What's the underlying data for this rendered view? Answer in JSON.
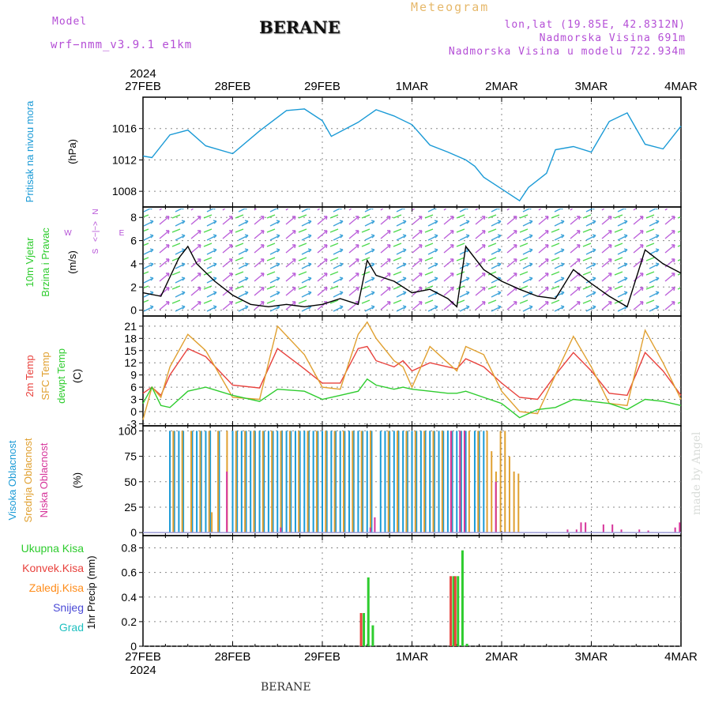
{
  "header": {
    "model_label": "Model",
    "model_name": "wrf−nmm_v3.9.1  e1km",
    "title": "BERANE",
    "meteogram_label": "Meteogram",
    "coords": "lon,lat (19.85E, 42.8312N)",
    "altitude": "Nadmorska Visina 691m",
    "model_altitude": "Nadmorska Visina u modelu 722.934m"
  },
  "footer": {
    "title": "BERANE",
    "made_by": "made by Angel"
  },
  "time_axis": {
    "year": "2024",
    "dates": [
      "27FEB",
      "28FEB",
      "29FEB",
      "1MAR",
      "2MAR",
      "3MAR",
      "4MAR"
    ]
  },
  "wind_legend": {
    "west": "W",
    "east": "E",
    "north_arrow": "<−|−>",
    "north": "N",
    "south": "S"
  },
  "colors": {
    "pressure": "#1a9ad6",
    "t2m": "#e8413c",
    "tsfc": "#e0a030",
    "dewpt": "#2ecc2e",
    "cloud_high": "#1a9ad6",
    "cloud_mid": "#e0a030",
    "cloud_low": "#d6349a",
    "precip_total": "#2ecc2e",
    "precip_conv": "#e8413c",
    "precip_frozen": "#ff8c1a",
    "precip_snow": "#4a4ad6",
    "precip_hail": "#20c0c0"
  },
  "chart_data": [
    {
      "type": "line",
      "ylabel": "Pritisak na nivou mora",
      "unit": "(hPa)",
      "yticks": [
        1008,
        1012,
        1016
      ],
      "ylim": [
        1006,
        1020
      ],
      "x": [
        0,
        0.1,
        0.3,
        0.5,
        0.7,
        1.0,
        1.3,
        1.6,
        1.8,
        2.0,
        2.1,
        2.4,
        2.6,
        2.8,
        3.0,
        3.2,
        3.4,
        3.6,
        3.7,
        3.8,
        4.0,
        4.2,
        4.3,
        4.5,
        4.6,
        4.8,
        5.0,
        5.2,
        5.4,
        5.6,
        5.8,
        6.0
      ],
      "values": [
        1012.5,
        1012.3,
        1015.2,
        1015.8,
        1013.8,
        1012.8,
        1015.7,
        1018.3,
        1018.5,
        1017.0,
        1015.0,
        1016.8,
        1018.4,
        1017.6,
        1016.5,
        1013.9,
        1013.0,
        1012.0,
        1011.2,
        1009.8,
        1008.3,
        1006.8,
        1008.5,
        1010.3,
        1013.3,
        1013.7,
        1013.0,
        1016.9,
        1018.0,
        1014.0,
        1013.4,
        1016.3
      ],
      "grid": true
    },
    {
      "type": "line",
      "title": "10m Vjetar",
      "subtitle": "Brzina i Pravac",
      "ylabel": "10m Vjetar Brzina i Pravac",
      "unit": "(m/s)",
      "yticks": [
        0,
        2,
        4,
        6,
        8
      ],
      "ylim": [
        -0.5,
        8.9
      ],
      "x": [
        0,
        0.2,
        0.4,
        0.5,
        0.6,
        0.8,
        1.0,
        1.2,
        1.4,
        1.6,
        1.8,
        2.0,
        2.2,
        2.4,
        2.5,
        2.6,
        2.8,
        3.0,
        3.2,
        3.4,
        3.5,
        3.6,
        3.8,
        4.0,
        4.2,
        4.4,
        4.6,
        4.8,
        5.0,
        5.2,
        5.4,
        5.6,
        5.8,
        6.0
      ],
      "values": [
        1.5,
        1.2,
        4.5,
        5.5,
        4.0,
        2.5,
        1.3,
        0.5,
        0.3,
        0.5,
        0.3,
        0.5,
        1.0,
        0.5,
        4.3,
        3.0,
        2.5,
        1.5,
        1.8,
        1.0,
        0.3,
        5.5,
        3.5,
        2.5,
        1.8,
        1.2,
        1.0,
        3.5,
        2.3,
        1.2,
        0.3,
        5.2,
        4.0,
        3.2
      ],
      "grid": true
    },
    {
      "type": "line",
      "ylabel": "2m Temp / SFC Temp / dewpt Temp",
      "unit": "(C)",
      "yticks": [
        -3,
        0,
        3,
        6,
        9,
        12,
        15,
        18,
        21
      ],
      "ylim": [
        -3.5,
        23.5
      ],
      "x": [
        0,
        0.1,
        0.2,
        0.3,
        0.5,
        0.7,
        1.0,
        1.3,
        1.5,
        1.8,
        2.0,
        2.2,
        2.4,
        2.5,
        2.6,
        2.8,
        2.9,
        3.0,
        3.2,
        3.4,
        3.5,
        3.6,
        3.8,
        4.0,
        4.2,
        4.4,
        4.6,
        4.8,
        5.0,
        5.2,
        5.4,
        5.6,
        5.8,
        6.0
      ],
      "series": [
        {
          "name": "2m Temp",
          "values": [
            4.5,
            6.0,
            4.0,
            9.0,
            15.5,
            13.5,
            6.5,
            5.8,
            15.5,
            10.5,
            7.0,
            7.0,
            15.5,
            16.0,
            12.5,
            11.0,
            12.5,
            10.0,
            12.0,
            11.0,
            10.5,
            13.0,
            11.0,
            7.0,
            3.5,
            3.0,
            9.0,
            14.5,
            10.0,
            4.5,
            4.0,
            14.5,
            10.0,
            4.0
          ]
        },
        {
          "name": "SFC Temp",
          "values": [
            -2.0,
            6.0,
            3.5,
            11.0,
            19.0,
            15.0,
            3.5,
            3.0,
            21.0,
            14.0,
            6.0,
            5.5,
            19.0,
            22.0,
            18.0,
            12.5,
            11.0,
            6.0,
            16.0,
            12.0,
            10.0,
            16.0,
            14.0,
            5.0,
            0.0,
            -0.5,
            9.0,
            18.5,
            11.0,
            2.0,
            1.5,
            20.0,
            12.0,
            3.0
          ]
        },
        {
          "name": "dewpt Temp",
          "values": [
            2.0,
            6.0,
            1.5,
            1.0,
            5.0,
            6.0,
            4.0,
            2.5,
            5.5,
            5.0,
            3.0,
            4.0,
            5.0,
            8.0,
            6.5,
            5.5,
            6.0,
            5.5,
            5.0,
            4.5,
            4.5,
            5.0,
            3.5,
            2.0,
            -1.5,
            0.5,
            1.0,
            3.0,
            2.5,
            2.0,
            0.5,
            3.0,
            2.5,
            1.5
          ]
        }
      ],
      "grid": true
    },
    {
      "type": "bar",
      "ylabel": "Visoka Oblacnost / Srednja Oblacnost / Niska Oblacnost",
      "unit": "(%)",
      "yticks": [
        0,
        25,
        50,
        75,
        100
      ],
      "ylim": [
        -3,
        105
      ],
      "series": [
        {
          "name": "Visoka Oblacnost",
          "x": [
            0.3,
            0.35,
            0.4,
            0.45,
            0.55,
            0.6,
            0.65,
            0.7,
            0.75,
            0.85,
            1.0,
            1.05,
            1.1,
            1.15,
            1.2,
            1.25,
            1.3,
            1.35,
            1.4,
            1.45,
            1.5,
            1.55,
            1.6,
            1.65,
            1.7,
            1.75,
            1.8,
            1.85,
            1.9,
            1.95,
            2.0,
            2.05,
            2.1,
            2.15,
            2.2,
            2.25,
            2.3,
            2.35,
            2.4,
            2.45,
            2.5,
            2.55,
            2.65,
            2.7,
            2.75,
            2.8,
            2.85,
            2.9,
            2.95,
            3.0,
            3.05,
            3.1,
            3.15,
            3.2,
            3.25,
            3.3,
            3.35,
            3.4,
            3.45,
            3.5,
            3.55,
            3.6,
            3.7,
            3.75,
            3.8
          ],
          "values": [
            100,
            100,
            100,
            100,
            100,
            100,
            100,
            100,
            100,
            100,
            100,
            100,
            100,
            100,
            100,
            100,
            100,
            100,
            100,
            100,
            100,
            100,
            100,
            100,
            100,
            100,
            100,
            100,
            100,
            100,
            100,
            100,
            100,
            100,
            100,
            100,
            100,
            100,
            100,
            100,
            100,
            100,
            100,
            100,
            100,
            100,
            100,
            100,
            100,
            100,
            100,
            100,
            100,
            100,
            100,
            100,
            100,
            100,
            100,
            100,
            100,
            100,
            100,
            100,
            100
          ]
        },
        {
          "name": "Srednja Oblacnost",
          "x": [
            0.32,
            0.42,
            0.52,
            0.62,
            0.72,
            0.75,
            0.82,
            0.92,
            1.02,
            1.12,
            1.22,
            1.32,
            1.42,
            1.52,
            1.62,
            1.72,
            1.82,
            1.92,
            2.02,
            2.12,
            2.22,
            2.32,
            2.42,
            2.52,
            2.72,
            2.82,
            2.92,
            3.02,
            3.12,
            3.22,
            3.32,
            3.42,
            3.52,
            3.62,
            3.72,
            3.82,
            3.87,
            3.92,
            3.97,
            4.02,
            4.07,
            4.12,
            4.17
          ],
          "values": [
            100,
            100,
            100,
            100,
            100,
            20,
            100,
            100,
            100,
            100,
            100,
            100,
            100,
            100,
            100,
            100,
            100,
            100,
            100,
            100,
            100,
            100,
            100,
            100,
            100,
            100,
            100,
            100,
            100,
            100,
            100,
            100,
            100,
            100,
            100,
            100,
            80,
            60,
            100,
            100,
            75,
            60,
            58
          ]
        },
        {
          "name": "Niska Oblacnost",
          "x": [
            0.9,
            1.5,
            2.5,
            2.55,
            3.4,
            3.5,
            3.55,
            3.9,
            4.7,
            4.8,
            4.85,
            4.9,
            5.1,
            5.2,
            5.3,
            5.5,
            5.6,
            5.9,
            5.95
          ],
          "values": [
            60,
            5,
            5,
            15,
            100,
            100,
            100,
            50,
            3,
            3,
            10,
            10,
            8,
            8,
            3,
            3,
            2,
            5,
            10
          ]
        }
      ],
      "grid": true
    },
    {
      "type": "bar",
      "ylabel": "1hr Precip",
      "unit": "(mm)",
      "legend": [
        "Ukupna Kisa",
        "Konvek.Kisa",
        "Zaledj.Kisa",
        "Snijeg",
        "Grad"
      ],
      "yticks": [
        0,
        0.2,
        0.4,
        0.6,
        0.8
      ],
      "ylim": [
        0,
        0.9
      ],
      "series": [
        {
          "name": "Ukupna Kisa",
          "x": [
            2.45,
            2.5,
            2.55,
            3.45,
            3.5,
            3.55,
            3.6
          ],
          "values": [
            0.27,
            0.56,
            0.17,
            0.57,
            0.57,
            0.78,
            0.02
          ]
        },
        {
          "name": "Konvek.Kisa",
          "x": [
            2.45,
            3.45,
            3.5
          ],
          "values": [
            0.27,
            0.57,
            0.57
          ]
        }
      ],
      "grid": true
    }
  ]
}
